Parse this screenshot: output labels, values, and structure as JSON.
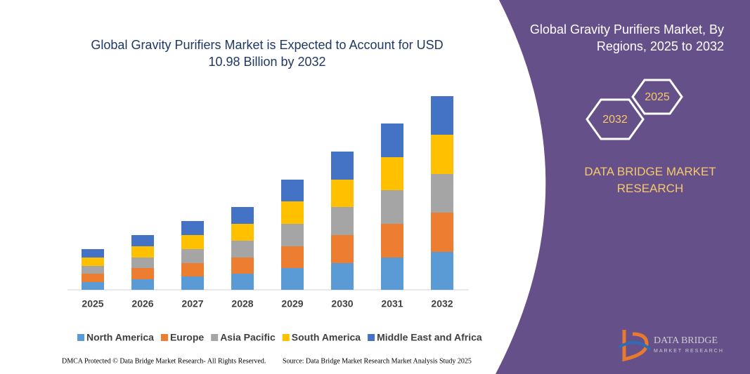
{
  "chart_data": {
    "type": "stacked-bar",
    "title": "Global Gravity Purifiers Market is Expected to Account for USD 10.98 Billion by 2032",
    "categories": [
      "2025",
      "2026",
      "2027",
      "2028",
      "2029",
      "2030",
      "2031",
      "2032"
    ],
    "ylim": [
      0,
      280
    ],
    "series": [
      {
        "name": "North America",
        "color": "#5b9bd5",
        "values": [
          11,
          15,
          19,
          23,
          31,
          38,
          46,
          54
        ]
      },
      {
        "name": "Europe",
        "color": "#ed7d31",
        "values": [
          12,
          16,
          19,
          23,
          31,
          40,
          48,
          56
        ]
      },
      {
        "name": "Asia Pacific",
        "color": "#a5a5a5",
        "values": [
          11,
          15,
          20,
          24,
          32,
          40,
          48,
          55
        ]
      },
      {
        "name": "South America",
        "color": "#ffc000",
        "values": [
          12,
          16,
          20,
          24,
          32,
          39,
          47,
          56
        ]
      },
      {
        "name": "Middle East and Africa",
        "color": "#4472c4",
        "values": [
          12,
          16,
          20,
          24,
          31,
          40,
          48,
          55
        ]
      }
    ]
  },
  "panel": {
    "title": "Global Gravity Purifiers Market, By Regions, 2025 to 2032",
    "years": [
      "2025",
      "2032"
    ],
    "brand": "DATA BRIDGE MARKET RESEARCH",
    "logo": [
      "DATA BRIDGE",
      "MARKET RESEARCH"
    ]
  },
  "footer": {
    "left": "DMCA Protected © Data Bridge Market Research- All Rights Reserved.",
    "right": "Source: Data Bridge Market Research Market Analysis Study 2025"
  }
}
